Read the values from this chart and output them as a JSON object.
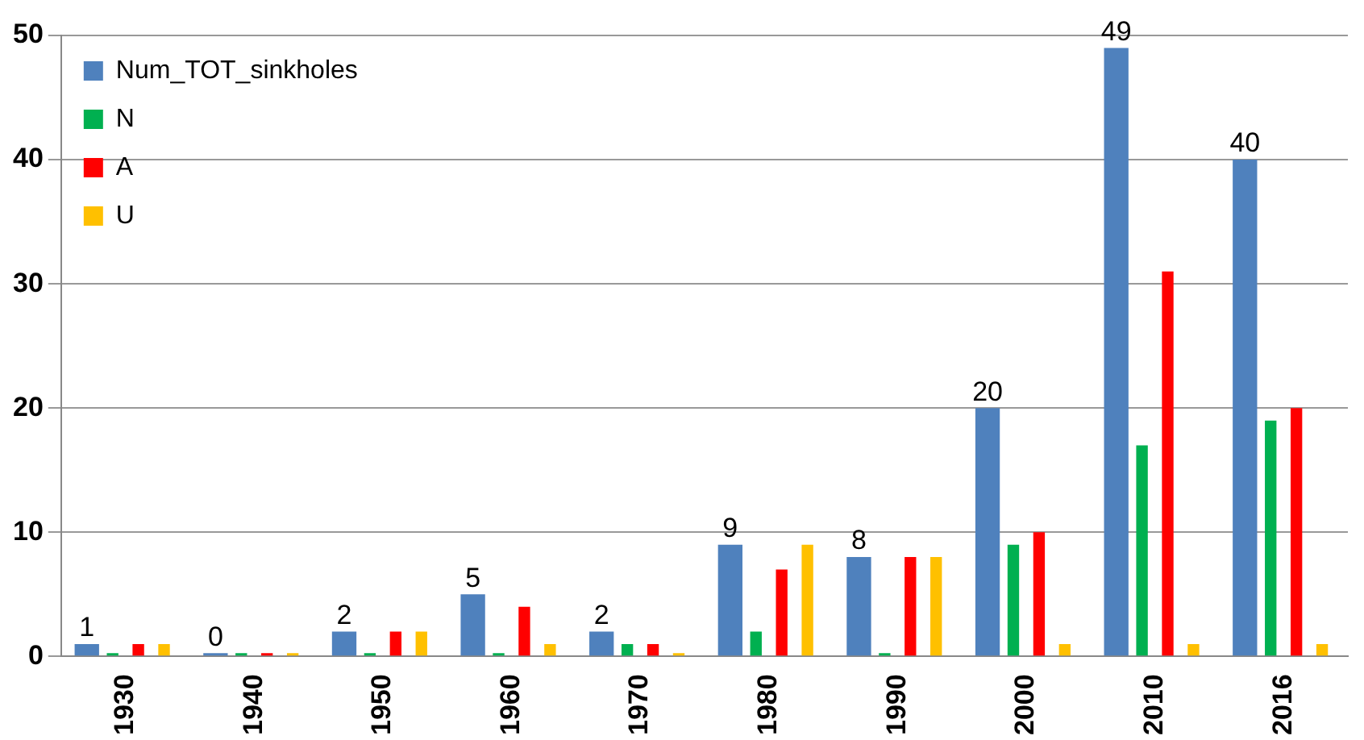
{
  "chart_data": {
    "type": "bar",
    "categories": [
      "1930",
      "1940",
      "1950",
      "1960",
      "1970",
      "1980",
      "1990",
      "2000",
      "2010",
      "2016"
    ],
    "series": [
      {
        "name": "Num_TOT_sinkholes",
        "color": "#4f81bd",
        "values": [
          1,
          0,
          2,
          5,
          2,
          9,
          8,
          20,
          49,
          40
        ],
        "value_labels": [
          "1",
          "0",
          "2",
          "5",
          "2",
          "9",
          "8",
          "20",
          "49",
          "40"
        ]
      },
      {
        "name": "N",
        "color": "#00b050",
        "values": [
          0,
          0,
          0,
          0,
          1,
          2,
          0,
          9,
          17,
          19
        ]
      },
      {
        "name": "A",
        "color": "#ff0000",
        "values": [
          1,
          0,
          2,
          4,
          1,
          7,
          8,
          10,
          31,
          20
        ]
      },
      {
        "name": "U",
        "color": "#ffc000",
        "values": [
          1,
          0,
          2,
          1,
          0,
          9,
          8,
          1,
          1,
          1
        ]
      }
    ],
    "ylim": [
      0,
      50
    ],
    "yticks": [
      0,
      10,
      20,
      30,
      40,
      50
    ],
    "grid": "y",
    "legend": "top left"
  }
}
